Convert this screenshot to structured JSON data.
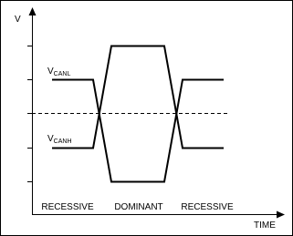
{
  "axes": {
    "y_label": "V",
    "x_label": "TIME"
  },
  "signals": [
    {
      "name": "V",
      "subscript": "CANL"
    },
    {
      "name": "V",
      "subscript": "CANH"
    }
  ],
  "phases": [
    "RECESSIVE",
    "DOMINANT",
    "RECESSIVE"
  ]
}
